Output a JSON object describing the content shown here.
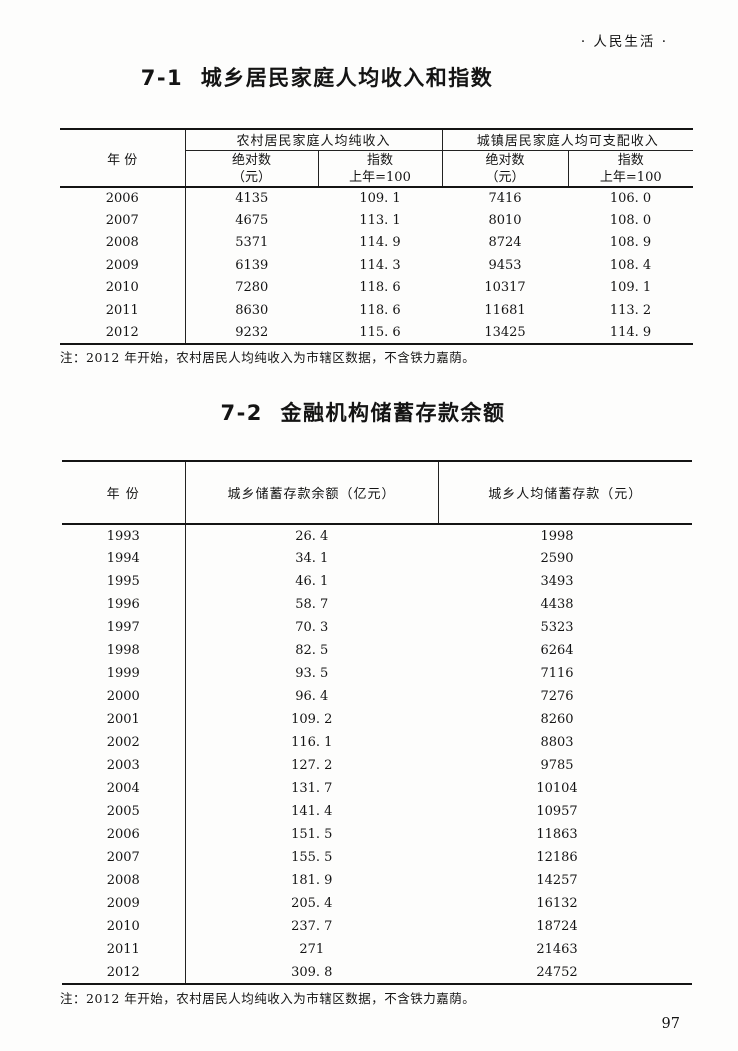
{
  "page": {
    "header_right": "·  人民生活  ·",
    "page_number": "97"
  },
  "table1": {
    "title": "7-1  城乡居民家庭人均收入和指数",
    "col_year": "年    份",
    "group_rural": "农村居民家庭人均纯收入",
    "group_urban": "城镇居民家庭人均可支配收入",
    "sub_rural_abs": {
      "l1": "绝对数",
      "l2": "（元）"
    },
    "sub_rural_index": {
      "l1": "指数",
      "l2": "上年=100"
    },
    "sub_urban_abs": {
      "l1": "绝对数",
      "l2": "（元）"
    },
    "sub_urban_index": {
      "l1": "指数",
      "l2": "上年=100"
    },
    "rows": [
      {
        "year": "2006",
        "rural_abs": "4135",
        "rural_index": "109. 1",
        "urban_abs": "7416",
        "urban_index": "106. 0"
      },
      {
        "year": "2007",
        "rural_abs": "4675",
        "rural_index": "113. 1",
        "urban_abs": "8010",
        "urban_index": "108. 0"
      },
      {
        "year": "2008",
        "rural_abs": "5371",
        "rural_index": "114. 9",
        "urban_abs": "8724",
        "urban_index": "108. 9"
      },
      {
        "year": "2009",
        "rural_abs": "6139",
        "rural_index": "114. 3",
        "urban_abs": "9453",
        "urban_index": "108. 4"
      },
      {
        "year": "2010",
        "rural_abs": "7280",
        "rural_index": "118. 6",
        "urban_abs": "10317",
        "urban_index": "109. 1"
      },
      {
        "year": "2011",
        "rural_abs": "8630",
        "rural_index": "118. 6",
        "urban_abs": "11681",
        "urban_index": "113. 2"
      },
      {
        "year": "2012",
        "rural_abs": "9232",
        "rural_index": "115. 6",
        "urban_abs": "13425",
        "urban_index": "114. 9"
      }
    ],
    "note": "注：2012 年开始，农村居民人均纯收入为市辖区数据，不含铁力嘉荫。"
  },
  "table2": {
    "title": "7-2  金融机构储蓄存款余额",
    "col_year": "年    份",
    "col_balance": "城乡储蓄存款余额（亿元）",
    "col_per_capita": "城乡人均储蓄存款（元）",
    "rows": [
      {
        "year": "1993",
        "balance": "26. 4",
        "per_capita": "1998"
      },
      {
        "year": "1994",
        "balance": "34. 1",
        "per_capita": "2590"
      },
      {
        "year": "1995",
        "balance": "46. 1",
        "per_capita": "3493"
      },
      {
        "year": "1996",
        "balance": "58. 7",
        "per_capita": "4438"
      },
      {
        "year": "1997",
        "balance": "70. 3",
        "per_capita": "5323"
      },
      {
        "year": "1998",
        "balance": "82. 5",
        "per_capita": "6264"
      },
      {
        "year": "1999",
        "balance": "93. 5",
        "per_capita": "7116"
      },
      {
        "year": "2000",
        "balance": "96. 4",
        "per_capita": "7276"
      },
      {
        "year": "2001",
        "balance": "109. 2",
        "per_capita": "8260"
      },
      {
        "year": "2002",
        "balance": "116. 1",
        "per_capita": "8803"
      },
      {
        "year": "2003",
        "balance": "127. 2",
        "per_capita": "9785"
      },
      {
        "year": "2004",
        "balance": "131. 7",
        "per_capita": "10104"
      },
      {
        "year": "2005",
        "balance": "141. 4",
        "per_capita": "10957"
      },
      {
        "year": "2006",
        "balance": "151. 5",
        "per_capita": "11863"
      },
      {
        "year": "2007",
        "balance": "155. 5",
        "per_capita": "12186"
      },
      {
        "year": "2008",
        "balance": "181. 9",
        "per_capita": "14257"
      },
      {
        "year": "2009",
        "balance": "205. 4",
        "per_capita": "16132"
      },
      {
        "year": "2010",
        "balance": "237. 7",
        "per_capita": "18724"
      },
      {
        "year": "2011",
        "balance": "271",
        "per_capita": "21463"
      },
      {
        "year": "2012",
        "balance": "309. 8",
        "per_capita": "24752"
      }
    ],
    "note": "注：2012 年开始，农村居民人均纯收入为市辖区数据，不含铁力嘉荫。"
  }
}
